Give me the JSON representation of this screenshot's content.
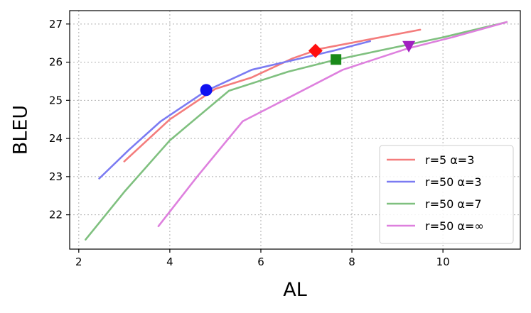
{
  "chart_data": {
    "type": "line",
    "title": "",
    "xlabel": "AL",
    "ylabel": "BLEU",
    "xlim": [
      1.8,
      11.7
    ],
    "ylim": [
      21.1,
      27.35
    ],
    "xticks": [
      2,
      4,
      6,
      8,
      10
    ],
    "yticks": [
      22,
      23,
      24,
      25,
      26,
      27
    ],
    "grid": true,
    "legend_position": "lower-right",
    "series": [
      {
        "name": "r=5 α=3",
        "color": "#f47c7c",
        "x": [
          3.0,
          4.0,
          5.0,
          5.8,
          6.7,
          7.3,
          8.4,
          9.5
        ],
        "y": [
          23.4,
          24.5,
          25.3,
          25.6,
          26.1,
          26.35,
          26.6,
          26.85
        ],
        "marker": {
          "shape": "diamond",
          "color": "#ff1010",
          "x": 7.2,
          "y": 26.3
        }
      },
      {
        "name": "r=50 α=3",
        "color": "#7b7bf2",
        "x": [
          2.45,
          3.1,
          3.8,
          4.8,
          5.8,
          6.7,
          7.6,
          8.4
        ],
        "y": [
          22.95,
          23.7,
          24.45,
          25.25,
          25.8,
          26.05,
          26.3,
          26.55
        ],
        "marker": {
          "shape": "circle",
          "color": "#1010f0",
          "x": 4.8,
          "y": 25.27
        }
      },
      {
        "name": "r=50 α=7",
        "color": "#7fc07f",
        "x": [
          2.15,
          3.0,
          4.0,
          5.3,
          6.6,
          7.6,
          8.6,
          10.0,
          11.4
        ],
        "y": [
          21.35,
          22.6,
          23.95,
          25.25,
          25.75,
          26.05,
          26.3,
          26.65,
          27.05
        ],
        "marker": {
          "shape": "square",
          "color": "#1a8a1a",
          "x": 7.65,
          "y": 26.07
        }
      },
      {
        "name": "r=50 α=∞",
        "color": "#de80de",
        "x": [
          3.75,
          4.6,
          5.6,
          6.5,
          7.8,
          9.2,
          10.2,
          11.4
        ],
        "y": [
          21.7,
          23.0,
          24.45,
          25.0,
          25.8,
          26.35,
          26.65,
          27.05
        ],
        "marker": {
          "shape": "triangle-down",
          "color": "#a020c0",
          "x": 9.25,
          "y": 26.42
        }
      }
    ]
  }
}
